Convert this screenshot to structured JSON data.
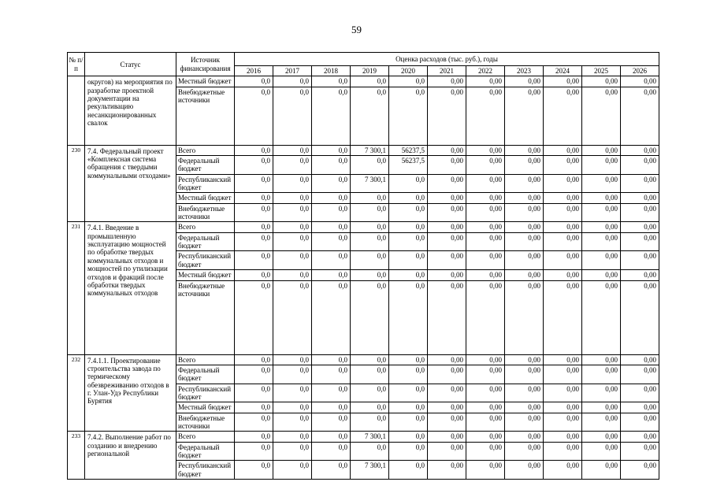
{
  "page": {
    "number": "59"
  },
  "table": {
    "headers": {
      "num": "№ п/п",
      "status": "Статус",
      "source": "Источник финансирования",
      "costs": "Оценка расходов (тыс. руб.), годы",
      "years": [
        "2016",
        "2017",
        "2018",
        "2019",
        "2020",
        "2021",
        "2022",
        "2023",
        "2024",
        "2025",
        "2026"
      ]
    },
    "groups": [
      {
        "num": "",
        "status": "округов) на мероприятия по разработке проектной документации на рекультивацию несанкционированных свалок",
        "rows": [
          {
            "source": "Местный бюджет",
            "values": [
              "0,0",
              "0,0",
              "0,0",
              "0,0",
              "0,0",
              "0,00",
              "0,00",
              "0,00",
              "0,00",
              "0,00",
              "0,00"
            ]
          },
          {
            "source": "Внебюджетные источники",
            "values": [
              "0,0",
              "0,0",
              "0,0",
              "0,0",
              "0,0",
              "0,00",
              "0,00",
              "0,00",
              "0,00",
              "0,00",
              "0,00"
            ]
          }
        ]
      },
      {
        "num": "230",
        "status": "7.4. Федеральный проект «Комплексная система обращения с твердыми коммунальными отходами»",
        "rows": [
          {
            "source": "Всего",
            "values": [
              "0,0",
              "0,0",
              "0,0",
              "7 300,1",
              "56237,5",
              "0,00",
              "0,00",
              "0,00",
              "0,00",
              "0,00",
              "0,00"
            ]
          },
          {
            "source": "Федеральный бюджет",
            "values": [
              "0,0",
              "0,0",
              "0,0",
              "0,0",
              "56237,5",
              "0,00",
              "0,00",
              "0,00",
              "0,00",
              "0,00",
              "0,00"
            ]
          },
          {
            "source": "Республиканский бюджет",
            "values": [
              "0,0",
              "0,0",
              "0,0",
              "7 300,1",
              "0,0",
              "0,00",
              "0,00",
              "0,00",
              "0,00",
              "0,00",
              "0,00"
            ]
          },
          {
            "source": "Местный бюджет",
            "values": [
              "0,0",
              "0,0",
              "0,0",
              "0,0",
              "0,0",
              "0,00",
              "0,00",
              "0,00",
              "0,00",
              "0,00",
              "0,00"
            ]
          },
          {
            "source": "Внебюджетные источники",
            "values": [
              "0,0",
              "0,0",
              "0,0",
              "0,0",
              "0,0",
              "0,00",
              "0,00",
              "0,00",
              "0,00",
              "0,00",
              "0,00"
            ]
          }
        ]
      },
      {
        "num": "231",
        "status": "7.4.1. Введение в промышленную эксплуатацию мощностей по обработке твердых коммунальных отходов и мощностей по утилизации отходов и фракций после обработки твердых коммунальных отходов",
        "rows": [
          {
            "source": "Всего",
            "values": [
              "0,0",
              "0,0",
              "0,0",
              "0,0",
              "0,0",
              "0,00",
              "0,00",
              "0,00",
              "0,00",
              "0,00",
              "0,00"
            ]
          },
          {
            "source": "Федеральный бюджет",
            "values": [
              "0,0",
              "0,0",
              "0,0",
              "0,0",
              "0,0",
              "0,00",
              "0,00",
              "0,00",
              "0,00",
              "0,00",
              "0,00"
            ]
          },
          {
            "source": "Республиканский бюджет",
            "values": [
              "0,0",
              "0,0",
              "0,0",
              "0,0",
              "0,0",
              "0,00",
              "0,00",
              "0,00",
              "0,00",
              "0,00",
              "0,00"
            ]
          },
          {
            "source": "Местный бюджет",
            "values": [
              "0,0",
              "0,0",
              "0,0",
              "0,0",
              "0,0",
              "0,00",
              "0,00",
              "0,00",
              "0,00",
              "0,00",
              "0,00"
            ]
          },
          {
            "source": "Внебюджетные источники",
            "values": [
              "0,0",
              "0,0",
              "0,0",
              "0,0",
              "0,0",
              "0,00",
              "0,00",
              "0,00",
              "0,00",
              "0,00",
              "0,00"
            ]
          }
        ]
      },
      {
        "num": "232",
        "status": "7.4.1.1. Проектирование строительства завода по термическому обезвреживанию отходов в г. Улан-Удэ Республики Бурятия",
        "rows": [
          {
            "source": "Всего",
            "values": [
              "0,0",
              "0,0",
              "0,0",
              "0,0",
              "0,0",
              "0,00",
              "0,00",
              "0,00",
              "0,00",
              "0,00",
              "0,00"
            ]
          },
          {
            "source": "Федеральный бюджет",
            "values": [
              "0,0",
              "0,0",
              "0,0",
              "0,0",
              "0,0",
              "0,00",
              "0,00",
              "0,00",
              "0,00",
              "0,00",
              "0,00"
            ]
          },
          {
            "source": "Республиканский бюджет",
            "values": [
              "0,0",
              "0,0",
              "0,0",
              "0,0",
              "0,0",
              "0,00",
              "0,00",
              "0,00",
              "0,00",
              "0,00",
              "0,00"
            ]
          },
          {
            "source": "Местный бюджет",
            "values": [
              "0,0",
              "0,0",
              "0,0",
              "0,0",
              "0,0",
              "0,00",
              "0,00",
              "0,00",
              "0,00",
              "0,00",
              "0,00"
            ]
          },
          {
            "source": "Внебюджетные источники",
            "values": [
              "0,0",
              "0,0",
              "0,0",
              "0,0",
              "0,0",
              "0,00",
              "0,00",
              "0,00",
              "0,00",
              "0,00",
              "0,00"
            ]
          }
        ]
      },
      {
        "num": "233",
        "status": "7.4.2. Выполнение работ по созданию и внедрению региональной",
        "rows": [
          {
            "source": "Всего",
            "values": [
              "0,0",
              "0,0",
              "0,0",
              "7 300,1",
              "0,0",
              "0,00",
              "0,00",
              "0,00",
              "0,00",
              "0,00",
              "0,00"
            ]
          },
          {
            "source": "Федеральный бюджет",
            "values": [
              "0,0",
              "0,0",
              "0,0",
              "0,0",
              "0,0",
              "0,00",
              "0,00",
              "0,00",
              "0,00",
              "0,00",
              "0,00"
            ]
          },
          {
            "source": "Республиканский бюджет",
            "values": [
              "0,0",
              "0,0",
              "0,0",
              "7 300,1",
              "0,0",
              "0,00",
              "0,00",
              "0,00",
              "0,00",
              "0,00",
              "0,00"
            ]
          }
        ]
      }
    ]
  }
}
